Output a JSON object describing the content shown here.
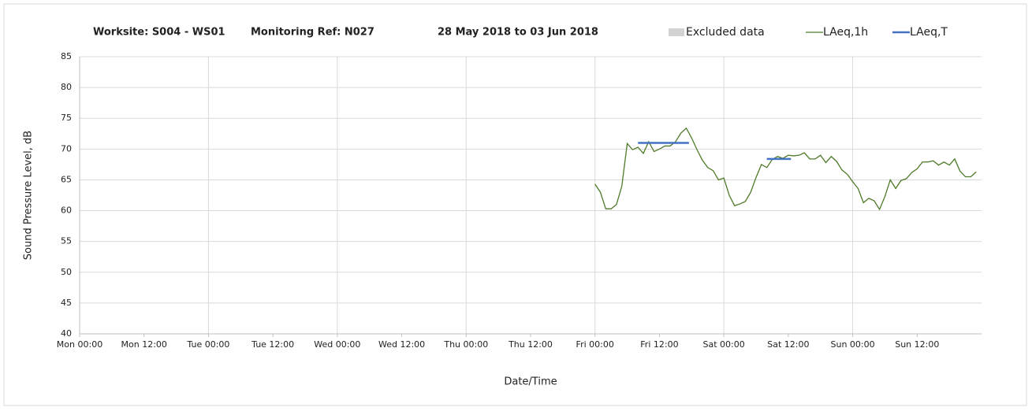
{
  "chart_data": {
    "type": "line",
    "title": "Worksite: S004 - WS01",
    "monitoring_ref": "Monitoring Ref: N027",
    "date_range": "28 May 2018 to 03 Jun 2018",
    "xlabel": "Date/Time",
    "ylabel": "Sound Pressure Level, dB",
    "xlim": [
      0,
      168
    ],
    "xticks": [
      {
        "value": 0,
        "label": "Mon 00:00"
      },
      {
        "value": 12,
        "label": "Mon 12:00"
      },
      {
        "value": 24,
        "label": "Tue 00:00"
      },
      {
        "value": 36,
        "label": "Tue 12:00"
      },
      {
        "value": 48,
        "label": "Wed 00:00"
      },
      {
        "value": 60,
        "label": "Wed 12:00"
      },
      {
        "value": 72,
        "label": "Thu 00:00"
      },
      {
        "value": 84,
        "label": "Thu 12:00"
      },
      {
        "value": 96,
        "label": "Fri 00:00"
      },
      {
        "value": 108,
        "label": "Fri 12:00"
      },
      {
        "value": 120,
        "label": "Sat 00:00"
      },
      {
        "value": 132,
        "label": "Sat 12:00"
      },
      {
        "value": 144,
        "label": "Sun 00:00"
      },
      {
        "value": 156,
        "label": "Sun 12:00"
      }
    ],
    "ylim": [
      40,
      85
    ],
    "yticks": [
      40,
      45,
      50,
      55,
      60,
      65,
      70,
      75,
      80,
      85
    ],
    "grid": true,
    "series": [
      {
        "name": "Excluded data",
        "color": "#d3d3d3",
        "x": [],
        "values": []
      },
      {
        "name": "LAeq,1h",
        "color": "#4e7a27",
        "x": [
          96,
          97,
          98,
          99,
          100,
          101,
          102,
          103,
          104,
          105,
          106,
          107,
          108,
          109,
          110,
          111,
          112,
          113,
          114,
          115,
          116,
          117,
          118,
          119,
          120,
          121,
          122,
          123,
          124,
          125,
          126,
          127,
          128,
          129,
          130,
          131,
          132,
          133,
          134,
          135,
          136,
          137,
          138,
          139,
          140,
          141,
          142,
          143,
          144,
          145,
          146,
          147,
          148,
          149,
          150,
          151,
          152,
          153,
          154,
          155,
          156,
          157,
          158,
          159,
          160,
          161,
          162,
          163,
          164,
          165,
          166,
          167
        ],
        "values": [
          64.3,
          63.0,
          60.3,
          60.3,
          61.0,
          64.0,
          70.9,
          69.9,
          70.3,
          69.3,
          71.2,
          69.6,
          70.0,
          70.5,
          70.5,
          71.2,
          72.6,
          73.4,
          71.8,
          69.9,
          68.2,
          67.0,
          66.5,
          65.0,
          65.3,
          62.5,
          60.8,
          61.1,
          61.5,
          63.0,
          65.4,
          67.5,
          67.0,
          68.3,
          68.8,
          68.5,
          69.0,
          68.9,
          69.0,
          69.4,
          68.4,
          68.4,
          69.0,
          67.8,
          68.8,
          68.0,
          66.6,
          65.9,
          64.7,
          63.6,
          61.3,
          62.0,
          61.6,
          60.2,
          62.3,
          65.0,
          63.6,
          64.9,
          65.2,
          66.2,
          66.8,
          67.9,
          67.9,
          68.1,
          67.4,
          67.9,
          67.4,
          68.4,
          66.4,
          65.5,
          65.5,
          66.3
        ]
      },
      {
        "name": "LAeq,T",
        "color": "#4472c4",
        "x": [
          104,
          113.5,
          120,
          128,
          132.5
        ],
        "values": [
          71.0,
          71.0,
          null,
          68.4,
          68.4
        ]
      }
    ]
  }
}
